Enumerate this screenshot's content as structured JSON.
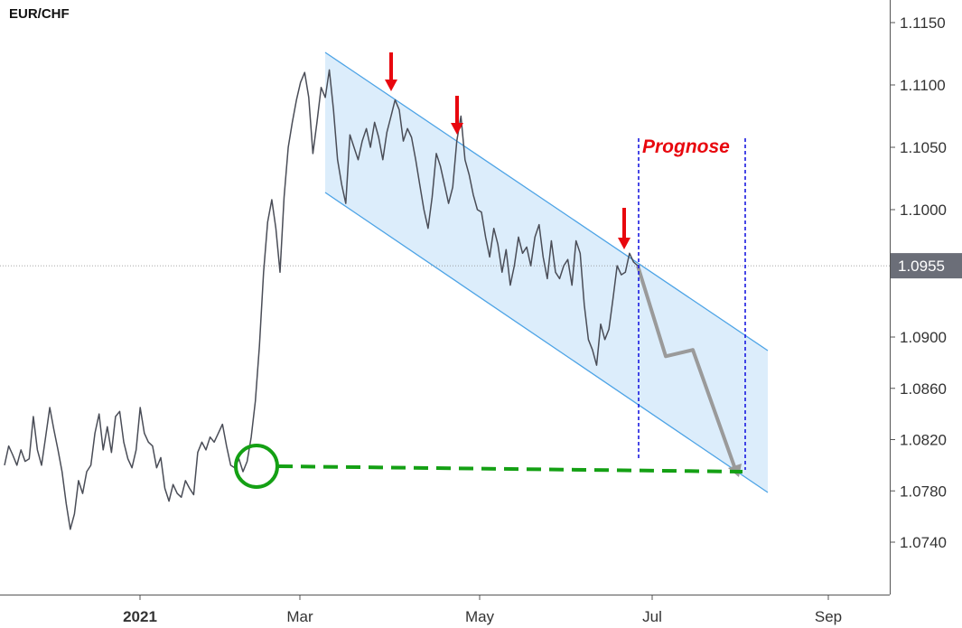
{
  "chart_data": {
    "type": "line",
    "symbol": "EUR/CHF",
    "y_ticks": [
      "1.1150",
      "1.1100",
      "1.1050",
      "1.1000",
      "1.0900",
      "1.0860",
      "1.0820",
      "1.0780",
      "1.0740"
    ],
    "current_price_label": "1.0955",
    "current_price": 1.0955,
    "x_ticks": [
      "2021",
      "Mar",
      "May",
      "Jul",
      "Sep"
    ],
    "annotation": "Prognose",
    "colors": {
      "price_line": "#4a4d57",
      "channel_line": "#4ea4e6",
      "channel_fill": "#dcedfb",
      "arrow_red": "#e8070e",
      "forecast_gray": "#9a9a9a",
      "support_green": "#14a014",
      "vline_blue": "#1a1ae0",
      "badge": "#6b6e78",
      "axis": "#555555"
    },
    "series": [
      {
        "values": [
          1.08,
          1.0815,
          1.0808,
          1.08,
          1.0812,
          1.0803,
          1.0805,
          1.0838,
          1.0812,
          1.08,
          1.0822,
          1.0845,
          1.0828,
          1.0812,
          1.0795,
          1.077,
          1.075,
          1.0762,
          1.0788,
          1.0778,
          1.0795,
          1.08,
          1.0825,
          1.084,
          1.0812,
          1.083,
          1.081,
          1.0838,
          1.0842,
          1.0818,
          1.0805,
          1.0798,
          1.0812,
          1.0845,
          1.0825,
          1.0818,
          1.0815,
          1.0798,
          1.0806,
          1.0782,
          1.0772,
          1.0785,
          1.0778,
          1.0775,
          1.0788,
          1.0782,
          1.0777,
          1.081,
          1.0818,
          1.0812,
          1.0822,
          1.0818,
          1.0825,
          1.0832,
          1.0815,
          1.08,
          1.0798,
          1.0805,
          1.0795,
          1.0803,
          1.0822,
          1.085,
          1.0893,
          1.095,
          1.099,
          1.1008,
          1.0985,
          1.095,
          1.101,
          1.105,
          1.107,
          1.1088,
          1.1102,
          1.111,
          1.109,
          1.1045,
          1.107,
          1.1098,
          1.109,
          1.1112,
          1.108,
          1.104,
          1.102,
          1.1005,
          1.106,
          1.105,
          1.104,
          1.1055,
          1.1065,
          1.105,
          1.107,
          1.1058,
          1.104,
          1.1062,
          1.1075,
          1.1088,
          1.108,
          1.1055,
          1.1065,
          1.1058,
          1.104,
          1.102,
          1.1,
          1.0985,
          1.101,
          1.1045,
          1.1035,
          1.102,
          1.1005,
          1.1018,
          1.1055,
          1.1075,
          1.104,
          1.1028,
          1.1012,
          1.1,
          1.0998,
          1.0978,
          1.0962,
          1.0985,
          1.0972,
          1.095,
          1.0968,
          1.094,
          1.0955,
          1.0978,
          1.0965,
          1.097,
          1.0955,
          1.0978,
          1.0988,
          1.0962,
          1.0945,
          1.0975,
          1.095,
          1.0945,
          1.0955,
          1.096,
          1.094,
          1.0975,
          1.0965,
          1.0925,
          1.0898,
          1.089,
          1.0878,
          1.091,
          1.0898,
          1.0906,
          1.093,
          1.0955,
          1.0948,
          1.095,
          1.0965,
          1.0958,
          1.0955
        ]
      },
      {
        "values": [
          1.0955,
          1.0885,
          1.089,
          1.0795
        ]
      }
    ]
  }
}
